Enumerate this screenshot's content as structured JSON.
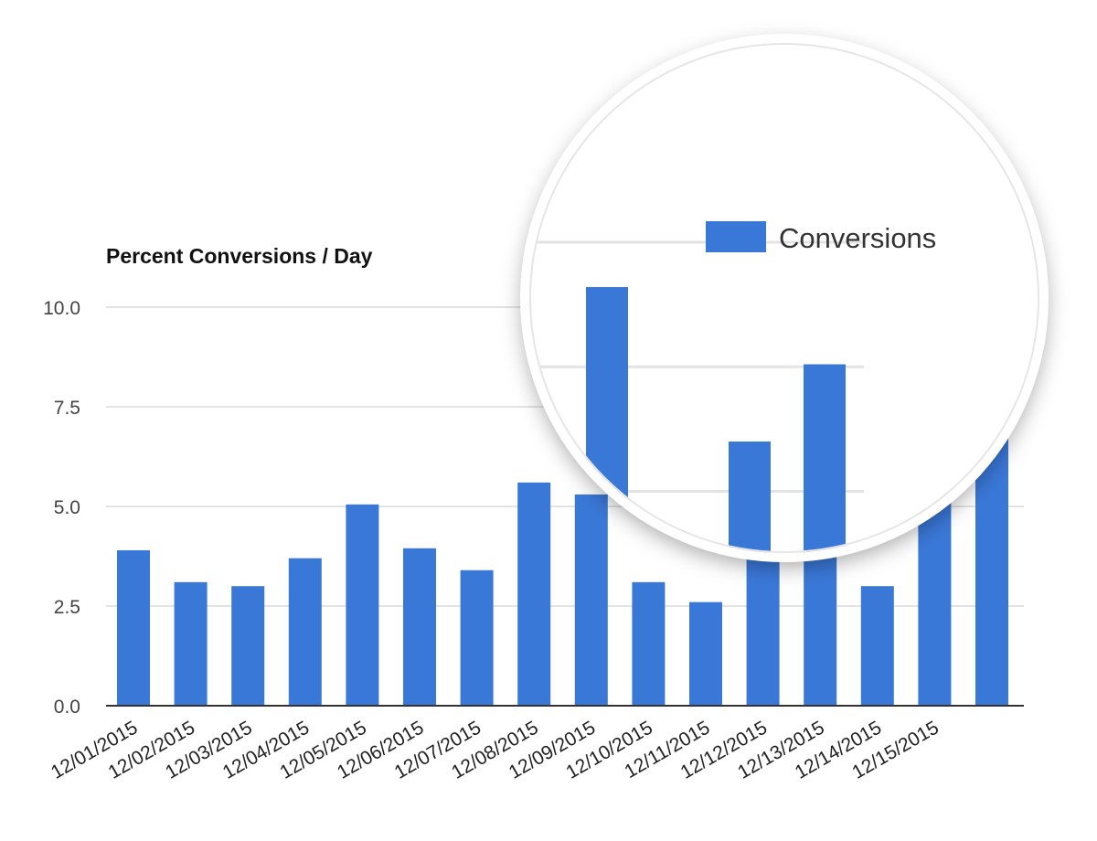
{
  "chart_data": {
    "type": "bar",
    "title": "Percent Conversions / Day",
    "xlabel": "",
    "ylabel": "",
    "categories": [
      "12/01/2015",
      "12/02/2015",
      "12/03/2015",
      "12/04/2015",
      "12/05/2015",
      "12/06/2015",
      "12/07/2015",
      "12/08/2015",
      "12/09/2015",
      "12/10/2015",
      "12/11/2015",
      "12/12/2015",
      "12/13/2015",
      "12/14/2015",
      "12/15/2015",
      ""
    ],
    "series": [
      {
        "name": "Conversions",
        "values": [
          3.9,
          3.1,
          3.0,
          3.7,
          5.05,
          3.95,
          3.4,
          5.6,
          5.3,
          3.1,
          2.6,
          4.1,
          4.35,
          3.0,
          5.65,
          6.8
        ],
        "color": "#3a78d8"
      }
    ],
    "ylim": [
      0,
      10
    ],
    "yticks": [
      "0.0",
      "2.5",
      "5.0",
      "7.5",
      "10.0"
    ],
    "grid": true,
    "legend": "top-right",
    "magnifier": {
      "legend_label": "Conversions",
      "magnified_values": [
        {
          "category": "12/09/2015",
          "value": 9.1
        },
        {
          "category": "12/12/2015",
          "value": 6.0
        },
        {
          "category": "12/13/2015",
          "value": 7.55
        }
      ]
    }
  }
}
